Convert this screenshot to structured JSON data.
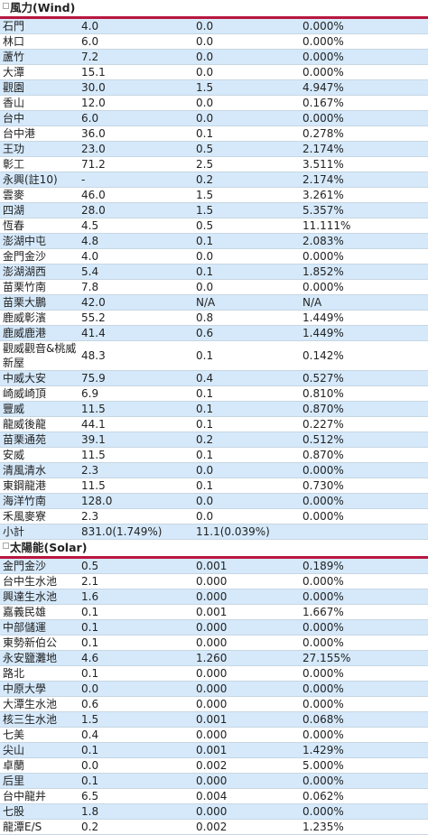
{
  "wind": {
    "title": "風力(Wind)",
    "rows": [
      [
        "石門",
        "4.0",
        "0.0",
        "0.000%"
      ],
      [
        "林口",
        "6.0",
        "0.0",
        "0.000%"
      ],
      [
        "蘆竹",
        "7.2",
        "0.0",
        "0.000%"
      ],
      [
        "大潭",
        "15.1",
        "0.0",
        "0.000%"
      ],
      [
        "觀園",
        "30.0",
        "1.5",
        "4.947%"
      ],
      [
        "香山",
        "12.0",
        "0.0",
        "0.167%"
      ],
      [
        "台中",
        "6.0",
        "0.0",
        "0.000%"
      ],
      [
        "台中港",
        "36.0",
        "0.1",
        "0.278%"
      ],
      [
        "王功",
        "23.0",
        "0.5",
        "2.174%"
      ],
      [
        "彰工",
        "71.2",
        "2.5",
        "3.511%"
      ],
      [
        "永興(註10)",
        "-",
        "0.2",
        "2.174%"
      ],
      [
        "雲麥",
        "46.0",
        "1.5",
        "3.261%"
      ],
      [
        "四湖",
        "28.0",
        "1.5",
        "5.357%"
      ],
      [
        "恆春",
        "4.5",
        "0.5",
        "11.111%"
      ],
      [
        "澎湖中屯",
        "4.8",
        "0.1",
        "2.083%"
      ],
      [
        "金門金沙",
        "4.0",
        "0.0",
        "0.000%"
      ],
      [
        "澎湖湖西",
        "5.4",
        "0.1",
        "1.852%"
      ],
      [
        "苗栗竹南",
        "7.8",
        "0.0",
        "0.000%"
      ],
      [
        "苗栗大鵬",
        "42.0",
        "N/A",
        "N/A"
      ],
      [
        "鹿威彰濱",
        "55.2",
        "0.8",
        "1.449%"
      ],
      [
        "鹿威鹿港",
        "41.4",
        "0.6",
        "1.449%"
      ],
      [
        "觀威觀音&桃威新屋",
        "48.3",
        "0.1",
        "0.142%"
      ],
      [
        "中威大安",
        "75.9",
        "0.4",
        "0.527%"
      ],
      [
        "崎威崎頂",
        "6.9",
        "0.1",
        "0.810%"
      ],
      [
        "豐威",
        "11.5",
        "0.1",
        "0.870%"
      ],
      [
        "龍威後龍",
        "44.1",
        "0.1",
        "0.227%"
      ],
      [
        "苗栗通苑",
        "39.1",
        "0.2",
        "0.512%"
      ],
      [
        "安威",
        "11.5",
        "0.1",
        "0.870%"
      ],
      [
        "清風清水",
        "2.3",
        "0.0",
        "0.000%"
      ],
      [
        "東鋼龍港",
        "11.5",
        "0.1",
        "0.730%"
      ],
      [
        "海洋竹南",
        "128.0",
        "0.0",
        "0.000%"
      ],
      [
        "禾風麥寮",
        "2.3",
        "0.0",
        "0.000%"
      ],
      [
        "小計",
        "831.0(1.749%)",
        "11.1(0.039%)",
        ""
      ]
    ]
  },
  "solar": {
    "title": "太陽能(Solar)",
    "rows": [
      [
        "金門金沙",
        "0.5",
        "0.001",
        "0.189%"
      ],
      [
        "台中生水池",
        "2.1",
        "0.000",
        "0.000%"
      ],
      [
        "興達生水池",
        "1.6",
        "0.000",
        "0.000%"
      ],
      [
        "嘉義民雄",
        "0.1",
        "0.001",
        "1.667%"
      ],
      [
        "中部儲運",
        "0.1",
        "0.000",
        "0.000%"
      ],
      [
        "東勢新伯公",
        "0.1",
        "0.000",
        "0.000%"
      ],
      [
        "永安鹽灘地",
        "4.6",
        "1.260",
        "27.155%"
      ],
      [
        "路北",
        "0.1",
        "0.000",
        "0.000%"
      ],
      [
        "中原大學",
        "0.0",
        "0.000",
        "0.000%"
      ],
      [
        "大潭生水池",
        "0.6",
        "0.000",
        "0.000%"
      ],
      [
        "核三生水池",
        "1.5",
        "0.001",
        "0.068%"
      ],
      [
        "七美",
        "0.4",
        "0.000",
        "0.000%"
      ],
      [
        "尖山",
        "0.1",
        "0.001",
        "1.429%"
      ],
      [
        "卓蘭",
        "0.0",
        "0.002",
        "5.000%"
      ],
      [
        "后里",
        "0.1",
        "0.000",
        "0.000%"
      ],
      [
        "台中龍井",
        "6.5",
        "0.004",
        "0.062%"
      ],
      [
        "七股",
        "1.8",
        "0.000",
        "0.000%"
      ],
      [
        "龍潭E/S",
        "0.2",
        "0.002",
        "1.235%"
      ]
    ]
  }
}
